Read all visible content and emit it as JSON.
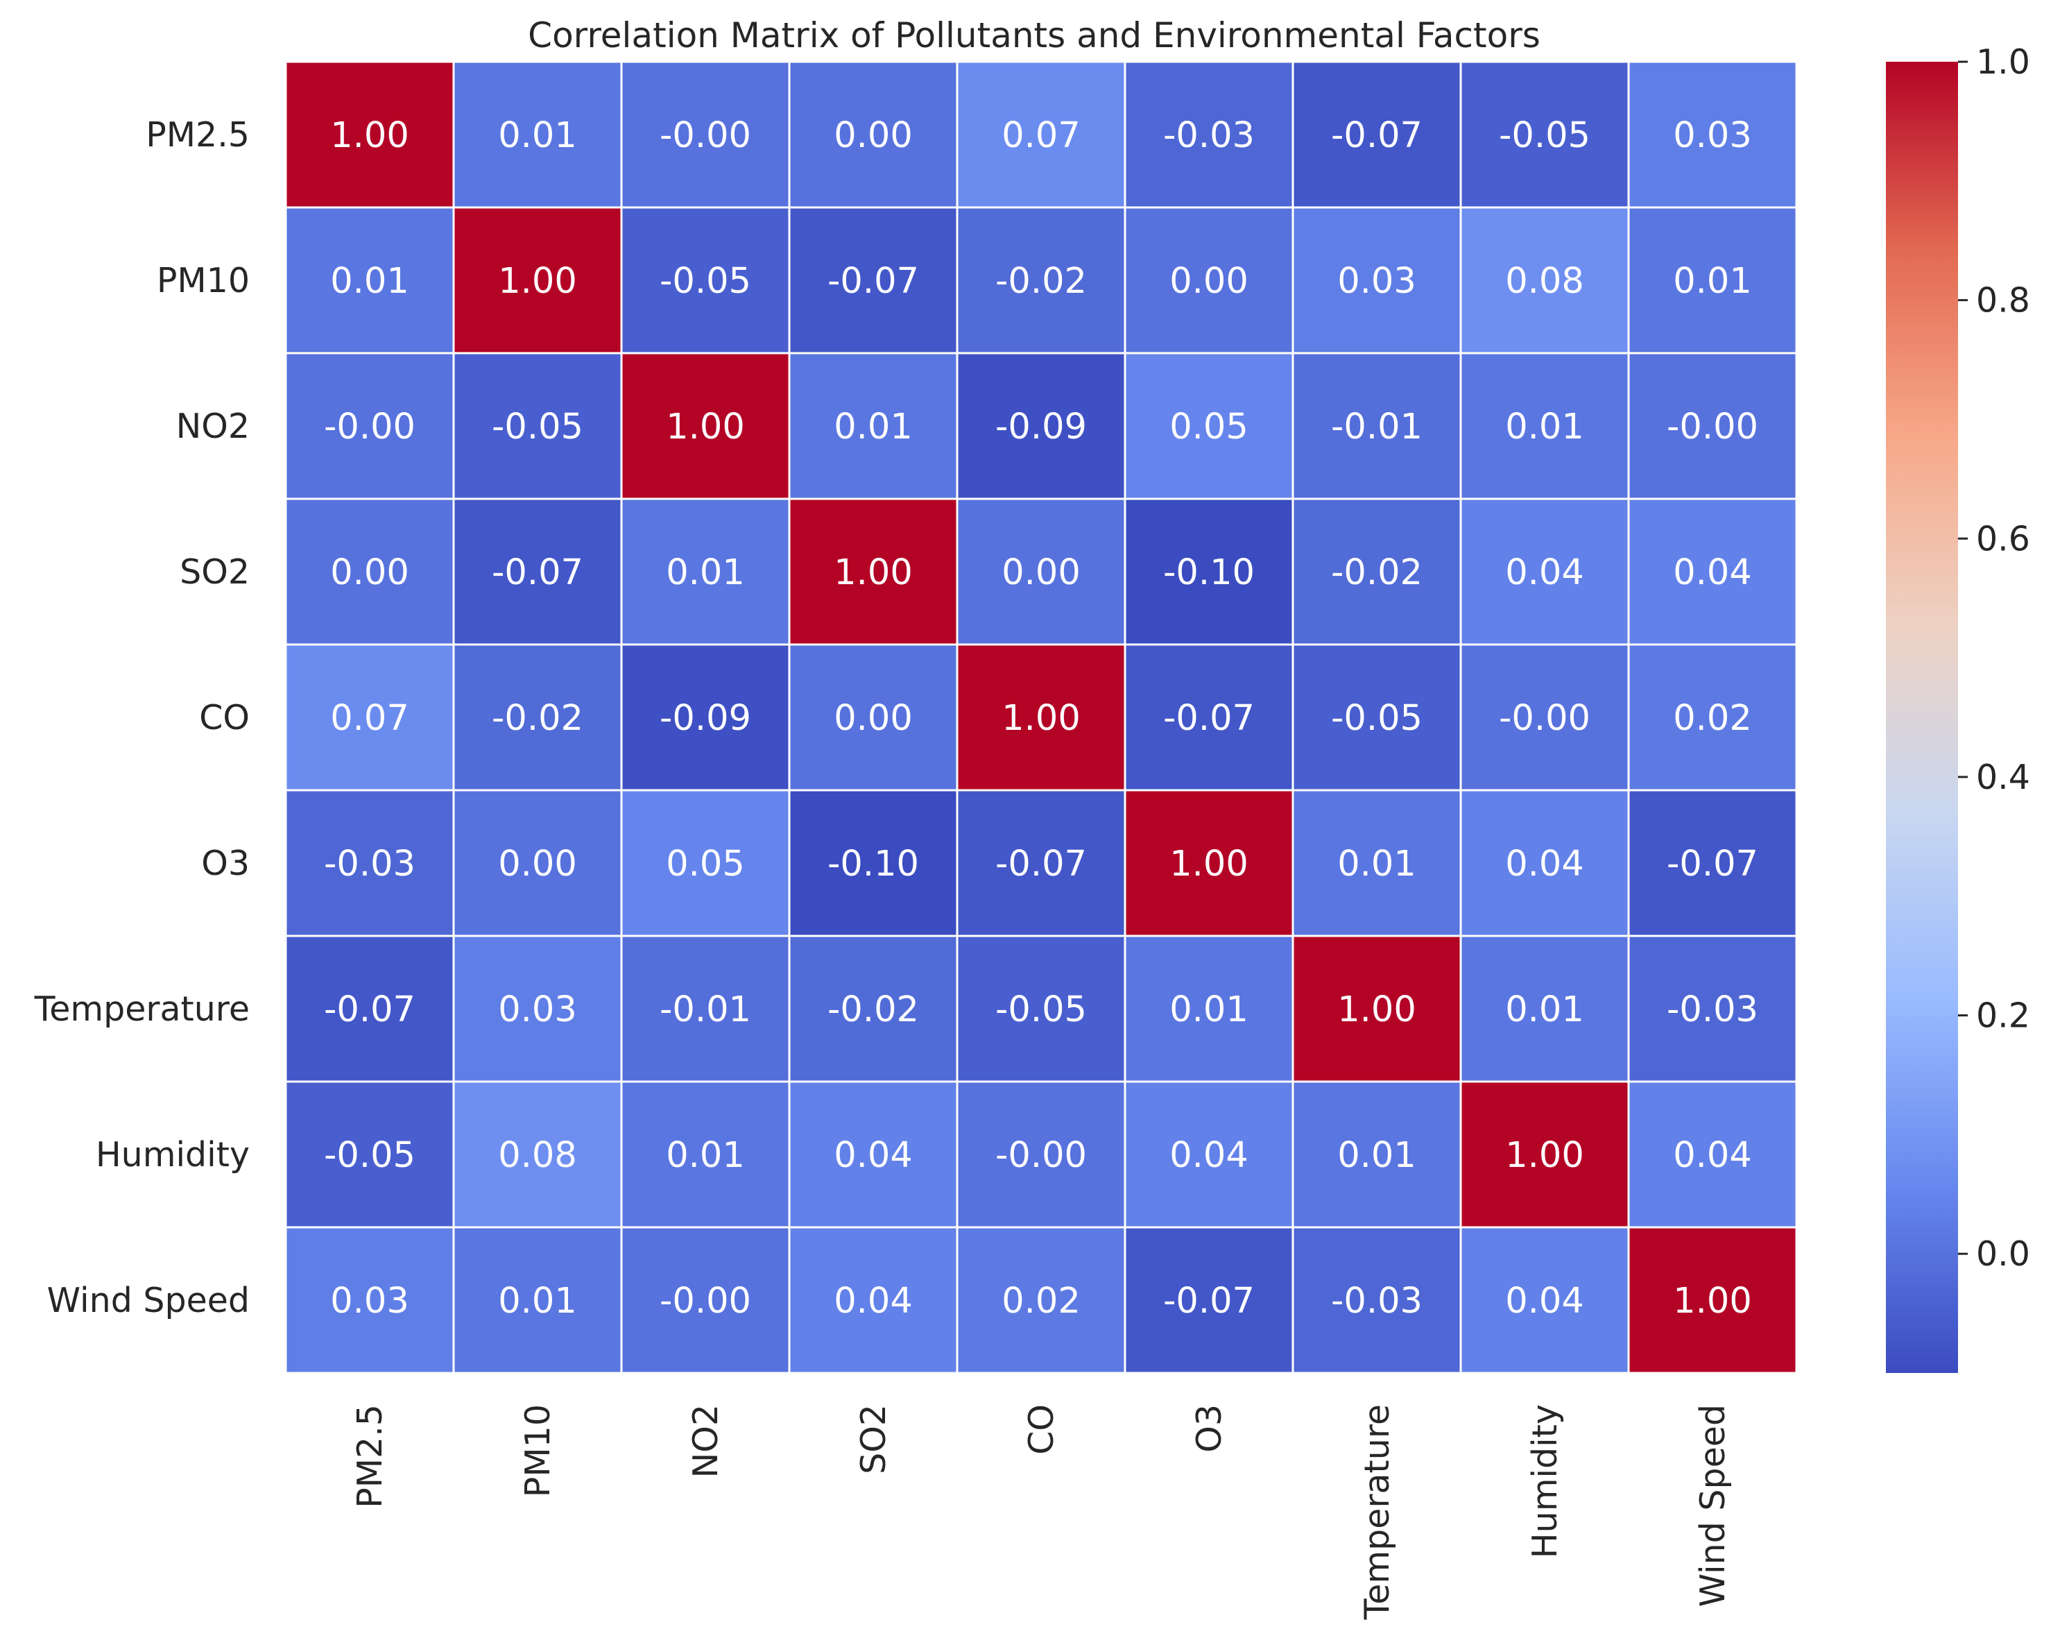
{
  "chart_data": {
    "type": "heatmap",
    "title": "Correlation Matrix of Pollutants and Environmental Factors",
    "rows": [
      "PM2.5",
      "PM10",
      "NO2",
      "SO2",
      "CO",
      "O3",
      "Temperature",
      "Humidity",
      "Wind Speed"
    ],
    "columns": [
      "PM2.5",
      "PM10",
      "NO2",
      "SO2",
      "CO",
      "O3",
      "Temperature",
      "Humidity",
      "Wind Speed"
    ],
    "values": [
      [
        1.0,
        0.01,
        -0.0,
        0.0,
        0.07,
        -0.03,
        -0.07,
        -0.05,
        0.03
      ],
      [
        0.01,
        1.0,
        -0.05,
        -0.07,
        -0.02,
        0.0,
        0.03,
        0.08,
        0.01
      ],
      [
        -0.0,
        -0.05,
        1.0,
        0.01,
        -0.09,
        0.05,
        -0.01,
        0.01,
        -0.0
      ],
      [
        0.0,
        -0.07,
        0.01,
        1.0,
        0.0,
        -0.1,
        -0.02,
        0.04,
        0.04
      ],
      [
        0.07,
        -0.02,
        -0.09,
        0.0,
        1.0,
        -0.07,
        -0.05,
        -0.0,
        0.02
      ],
      [
        -0.03,
        0.0,
        0.05,
        -0.1,
        -0.07,
        1.0,
        0.01,
        0.04,
        -0.07
      ],
      [
        -0.07,
        0.03,
        -0.01,
        -0.02,
        -0.05,
        0.01,
        1.0,
        0.01,
        -0.03
      ],
      [
        -0.05,
        0.08,
        0.01,
        0.04,
        -0.0,
        0.04,
        0.01,
        1.0,
        0.04
      ],
      [
        0.03,
        0.01,
        -0.0,
        0.04,
        0.02,
        -0.07,
        -0.03,
        0.04,
        1.0
      ]
    ],
    "cell_labels": [
      [
        "1.00",
        "0.01",
        "-0.00",
        "0.00",
        "0.07",
        "-0.03",
        "-0.07",
        "-0.05",
        "0.03"
      ],
      [
        "0.01",
        "1.00",
        "-0.05",
        "-0.07",
        "-0.02",
        "0.00",
        "0.03",
        "0.08",
        "0.01"
      ],
      [
        "-0.00",
        "-0.05",
        "1.00",
        "0.01",
        "-0.09",
        "0.05",
        "-0.01",
        "0.01",
        "-0.00"
      ],
      [
        "0.00",
        "-0.07",
        "0.01",
        "1.00",
        "0.00",
        "-0.10",
        "-0.02",
        "0.04",
        "0.04"
      ],
      [
        "0.07",
        "-0.02",
        "-0.09",
        "0.00",
        "1.00",
        "-0.07",
        "-0.05",
        "-0.00",
        "0.02"
      ],
      [
        "-0.03",
        "0.00",
        "0.05",
        "-0.10",
        "-0.07",
        "1.00",
        "0.01",
        "0.04",
        "-0.07"
      ],
      [
        "-0.07",
        "0.03",
        "-0.01",
        "-0.02",
        "-0.05",
        "0.01",
        "1.00",
        "0.01",
        "-0.03"
      ],
      [
        "-0.05",
        "0.08",
        "0.01",
        "0.04",
        "-0.00",
        "0.04",
        "0.01",
        "1.00",
        "0.04"
      ],
      [
        "0.03",
        "0.01",
        "-0.00",
        "0.04",
        "0.02",
        "-0.07",
        "-0.03",
        "0.04",
        "1.00"
      ]
    ],
    "colormap": "coolwarm",
    "vmin": -0.1,
    "vmax": 1.0,
    "colorbar": {
      "ticks": [
        0.0,
        0.2,
        0.4,
        0.6,
        0.8,
        1.0
      ],
      "tick_labels": [
        "0.0",
        "0.2",
        "0.4",
        "0.6",
        "0.8",
        "1.0"
      ],
      "colors": [
        "#3b4cc0",
        "#6788ee",
        "#9abbff",
        "#c9d7f0",
        "#edd1c2",
        "#f7a889",
        "#e26952",
        "#b40426"
      ]
    }
  }
}
